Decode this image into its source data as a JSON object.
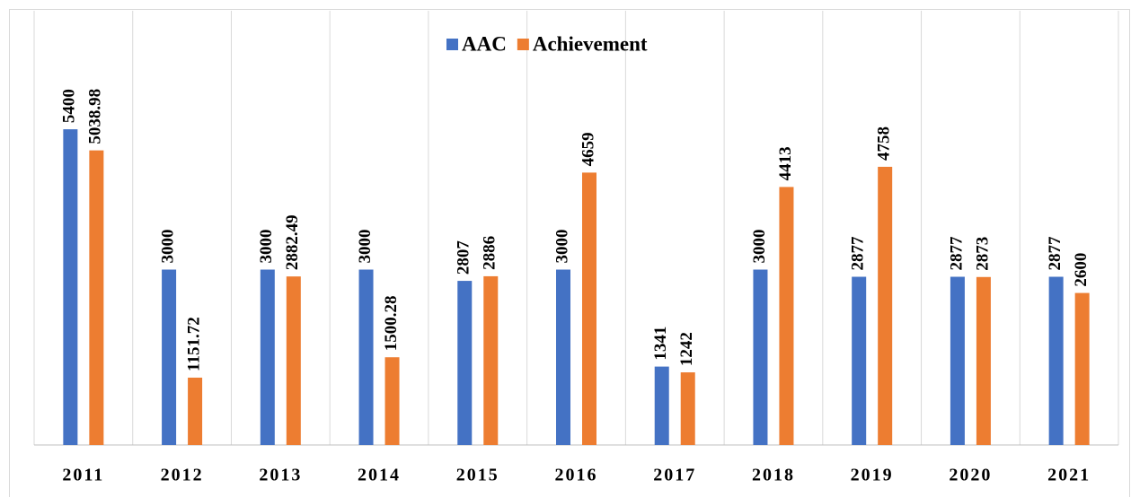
{
  "chart_data": {
    "type": "bar",
    "categories": [
      "2011",
      "2012",
      "2013",
      "2014",
      "2015",
      "2016",
      "2017",
      "2018",
      "2019",
      "2020",
      "2021"
    ],
    "series": [
      {
        "name": "AAC",
        "color": "#4472c4",
        "values": [
          5400,
          3000,
          3000,
          3000,
          2807,
          3000,
          1341,
          3000,
          2877,
          2877,
          2877
        ]
      },
      {
        "name": "Achievement",
        "color": "#ed7d31",
        "values": [
          5038.98,
          1151.72,
          2882.49,
          1500.28,
          2886,
          4659,
          1242,
          4413,
          4758,
          2873,
          2600
        ]
      }
    ],
    "ylim": [
      0,
      6000
    ],
    "legend": "top"
  }
}
